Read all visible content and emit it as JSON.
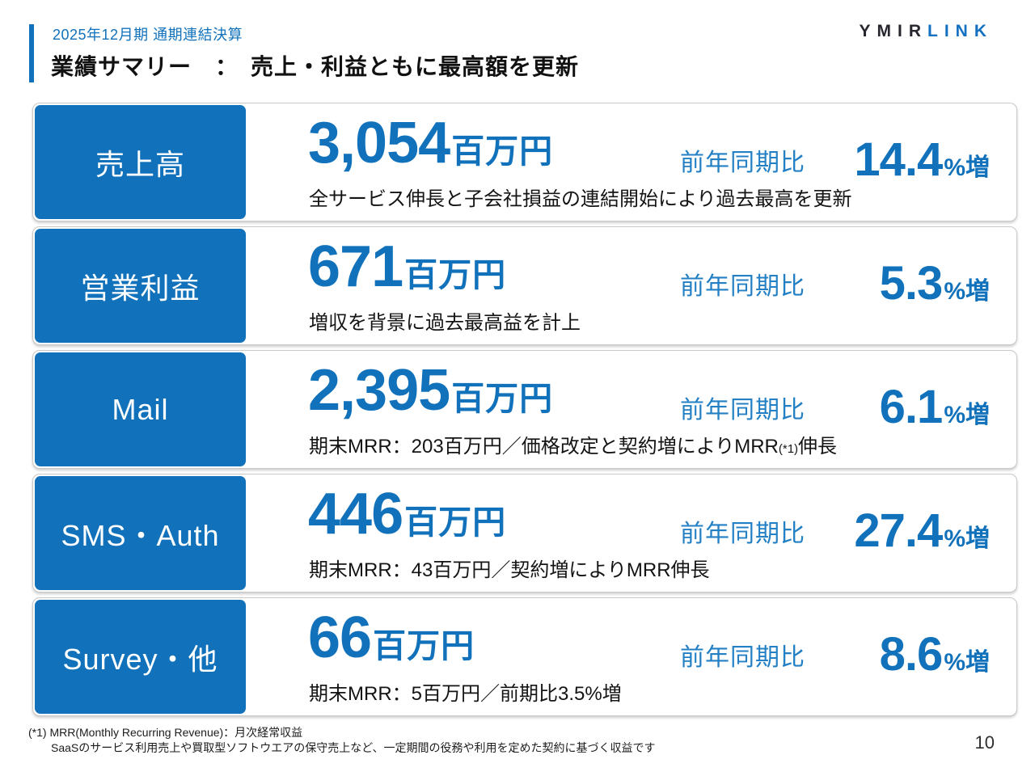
{
  "header": {
    "subtitle": "2025年12月期 通期連結決算",
    "title": "業績サマリー　：　売上・利益ともに最高額を更新",
    "logo_part1": "YMIR",
    "logo_part2": "LINK"
  },
  "colors": {
    "primary_blue": "#1172bb",
    "comparison_label_blue": "#2380c4",
    "logo_dark": "#26262e",
    "title_black": "#111111"
  },
  "rows": [
    {
      "label": "売上高",
      "value": "3,054",
      "unit": "百万円",
      "yoy_label": "前年同期比",
      "change_value": "14.4",
      "change_suffix": "%増",
      "desc": "全サービス伸長と子会社損益の連結開始により過去最高を更新",
      "desc_note": "",
      "desc_tail": ""
    },
    {
      "label": "営業利益",
      "value": "671",
      "unit": "百万円",
      "yoy_label": "前年同期比",
      "change_value": "5.3",
      "change_suffix": "%増",
      "desc": "増収を背景に過去最高益を計上",
      "desc_note": "",
      "desc_tail": ""
    },
    {
      "label": "Mail",
      "value": "2,395",
      "unit": "百万円",
      "yoy_label": "前年同期比",
      "change_value": "6.1",
      "change_suffix": "%増",
      "desc": "期末MRR：203百万円／価格改定と契約増によりMRR",
      "desc_note": "(*1)",
      "desc_tail": "伸長"
    },
    {
      "label": "SMS・Auth",
      "value": "446",
      "unit": "百万円",
      "yoy_label": "前年同期比",
      "change_value": "27.4",
      "change_suffix": "%増",
      "desc": "期末MRR：43百万円／契約増によりMRR伸長",
      "desc_note": "",
      "desc_tail": ""
    },
    {
      "label": "Survey・他",
      "value": "66",
      "unit": "百万円",
      "yoy_label": "前年同期比",
      "change_value": "8.6",
      "change_suffix": "%増",
      "desc": "期末MRR：5百万円／前期比3.5%増",
      "desc_note": "",
      "desc_tail": ""
    }
  ],
  "footer": {
    "note_line1": "(*1) MRR(Monthly Recurring Revenue)：月次経常収益",
    "note_line2": "SaaSのサービス利用売上や買取型ソフトウエアの保守売上など、一定期間の役務や利用を定めた契約に基づく収益です",
    "page_number": "10"
  }
}
